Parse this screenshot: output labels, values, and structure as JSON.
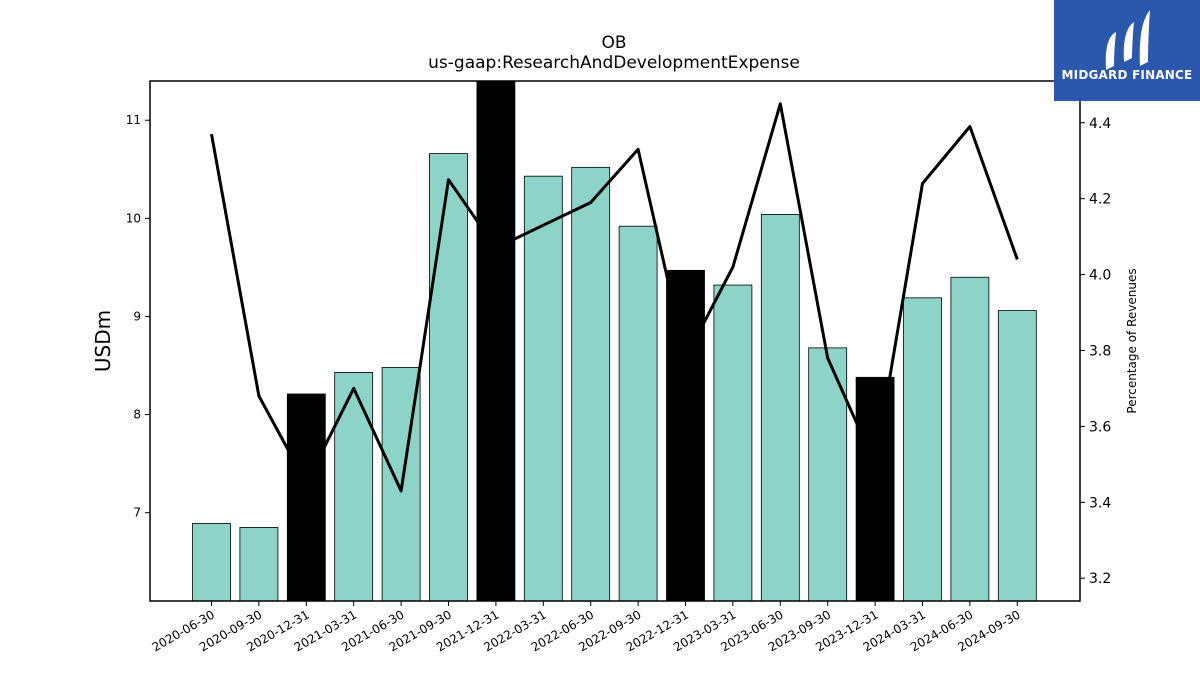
{
  "logo": {
    "text": "MIDGARD FINANCE",
    "bg_color": "#2b57ac"
  },
  "chart_data": {
    "type": "bar",
    "title": "OB",
    "subtitle": "us-gaap:ResearchAndDevelopmentExpense",
    "ylabel": "USDm",
    "y2label": "Percentage of Revenues",
    "ylim": [
      6.1,
      11.4
    ],
    "y2lim": [
      3.14,
      4.51
    ],
    "yticks": [
      7,
      8,
      9,
      10,
      11
    ],
    "y2ticks": [
      3.2,
      3.4,
      3.6,
      3.8,
      4.0,
      4.2,
      4.4
    ],
    "categories": [
      "2020-06-30",
      "2020-09-30",
      "2020-12-31",
      "2021-03-31",
      "2021-06-30",
      "2021-09-30",
      "2021-12-31",
      "2022-03-31",
      "2022-06-30",
      "2022-09-30",
      "2022-12-31",
      "2023-03-31",
      "2023-06-30",
      "2023-09-30",
      "2023-12-31",
      "2024-03-31",
      "2024-06-30",
      "2024-09-30"
    ],
    "series": [
      {
        "kind": "bar",
        "axis": "left",
        "values": [
          6.89,
          6.85,
          8.21,
          8.43,
          8.48,
          10.66,
          11.45,
          10.43,
          10.52,
          9.92,
          9.47,
          9.32,
          10.04,
          8.68,
          8.38,
          9.19,
          9.4,
          9.06
        ],
        "highlight": [
          false,
          false,
          true,
          false,
          false,
          false,
          true,
          false,
          false,
          false,
          true,
          false,
          false,
          false,
          true,
          false,
          false,
          false
        ]
      },
      {
        "kind": "line",
        "axis": "right",
        "values": [
          4.37,
          3.68,
          3.45,
          3.7,
          3.43,
          4.25,
          4.07,
          4.13,
          4.19,
          4.33,
          3.78,
          4.02,
          4.45,
          3.78,
          3.5,
          4.24,
          4.39,
          4.04
        ]
      }
    ],
    "colors": {
      "bar": "#8dd3c7",
      "bar_highlight": "#000000",
      "line": "#000000"
    },
    "grid": false,
    "legend": "none"
  }
}
